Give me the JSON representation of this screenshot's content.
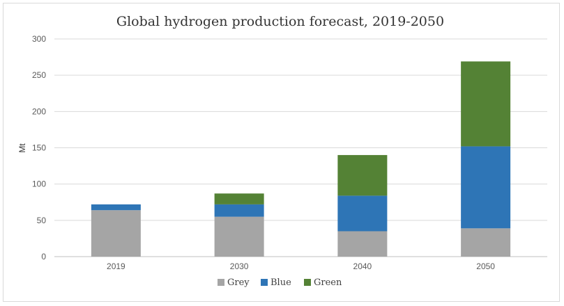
{
  "chart_data": {
    "type": "bar",
    "stacked": true,
    "title": "Global hydrogen production forecast, 2019-2050",
    "xlabel": "",
    "ylabel": "Mt",
    "categories": [
      "2019",
      "2030",
      "2040",
      "2050"
    ],
    "ylim": [
      0,
      300
    ],
    "yticks": [
      0,
      50,
      100,
      150,
      200,
      250,
      300
    ],
    "grid": true,
    "legend": "bottom",
    "series": [
      {
        "name": "Grey",
        "color": "#a5a5a5",
        "values": [
          64,
          55,
          35,
          39
        ]
      },
      {
        "name": "Blue",
        "color": "#2e75b6",
        "values": [
          8,
          17,
          49,
          113
        ]
      },
      {
        "name": "Green",
        "color": "#548235",
        "values": [
          0,
          15,
          56,
          117
        ]
      }
    ]
  }
}
